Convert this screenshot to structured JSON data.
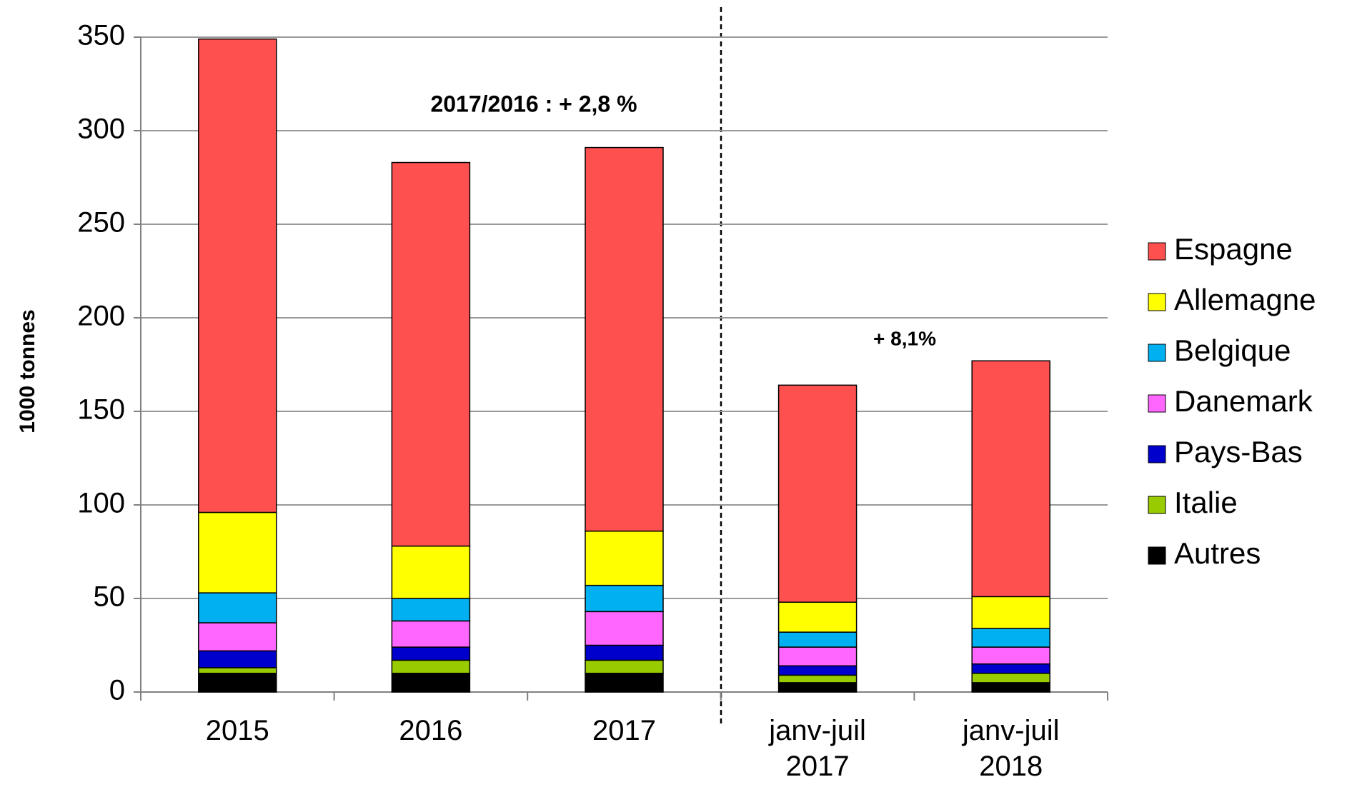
{
  "chart_data": {
    "type": "stacked_bar",
    "y_axis_label": "1000 tonnes",
    "categories": [
      "2015",
      "2016",
      "2017",
      "janv-juil 2017",
      "janv-juil 2018"
    ],
    "series": [
      {
        "name": "Autres",
        "color": "#000000",
        "values": [
          10,
          10,
          10,
          5,
          5
        ]
      },
      {
        "name": "Italie",
        "color": "#99cc00",
        "values": [
          3,
          7,
          7,
          4,
          5
        ]
      },
      {
        "name": "Pays-Bas",
        "color": "#0000cc",
        "values": [
          9,
          7,
          8,
          5,
          5
        ]
      },
      {
        "name": "Danemark",
        "color": "#ff66ff",
        "values": [
          15,
          14,
          18,
          10,
          9
        ]
      },
      {
        "name": "Belgique",
        "color": "#00b0f0",
        "values": [
          16,
          12,
          14,
          8,
          10
        ]
      },
      {
        "name": "Allemagne",
        "color": "#ffff00",
        "values": [
          43,
          28,
          29,
          16,
          17
        ]
      },
      {
        "name": "Espagne",
        "color": "#ff5050",
        "values": [
          253,
          205,
          205,
          116,
          126
        ]
      }
    ],
    "annotations": [
      "2017/2016 : + 2,8 %",
      "+ 8,1%"
    ],
    "ylim": [
      0,
      350
    ],
    "yticks": [
      0,
      50,
      100,
      150,
      200,
      250,
      300,
      350
    ],
    "grid": true,
    "legend": "right"
  }
}
